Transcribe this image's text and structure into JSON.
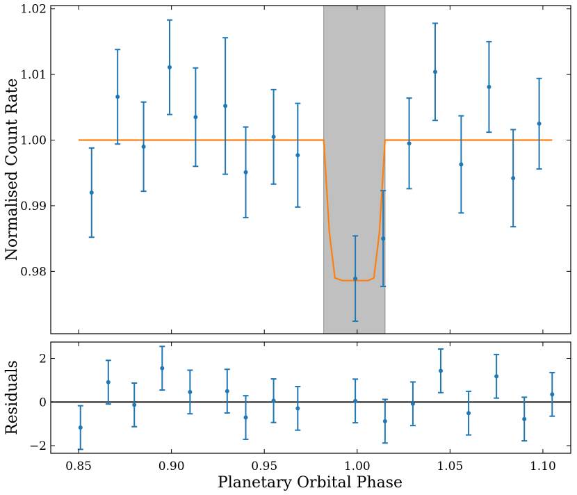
{
  "chart_data": [
    {
      "type": "scatter",
      "panel": "main",
      "xlabel": "",
      "ylabel": "Normalised Count Rate",
      "xlim": [
        0.835,
        1.115
      ],
      "ylim": [
        0.9705,
        1.0205
      ],
      "yticks": [
        "0.98",
        "0.99",
        "1.00",
        "1.01",
        "1.02"
      ],
      "ytick_values": [
        0.98,
        0.99,
        1.0,
        1.01,
        1.02
      ],
      "grid": false,
      "eclipse_band": {
        "x_start": 0.982,
        "x_end": 1.015,
        "color": "#c0c0c0"
      },
      "colors": {
        "data": "#1f77b4",
        "model": "#ff7f0e"
      },
      "series": [
        {
          "type": "errorbar",
          "points": [
            {
              "x": 0.857,
              "y": 0.992,
              "err": 0.0068
            },
            {
              "x": 0.871,
              "y": 1.0066,
              "err": 0.0072
            },
            {
              "x": 0.885,
              "y": 0.999,
              "err": 0.0068
            },
            {
              "x": 0.899,
              "y": 1.0111,
              "err": 0.0072
            },
            {
              "x": 0.913,
              "y": 1.0035,
              "err": 0.0075
            },
            {
              "x": 0.929,
              "y": 1.0052,
              "err": 0.0104
            },
            {
              "x": 0.94,
              "y": 0.9951,
              "err": 0.0069
            },
            {
              "x": 0.955,
              "y": 1.0005,
              "err": 0.0072
            },
            {
              "x": 0.968,
              "y": 0.9977,
              "err": 0.0079
            },
            {
              "x": 0.999,
              "y": 0.9789,
              "err": 0.0065
            },
            {
              "x": 1.014,
              "y": 0.985,
              "err": 0.0073
            },
            {
              "x": 1.028,
              "y": 0.9995,
              "err": 0.0069
            },
            {
              "x": 1.042,
              "y": 1.0104,
              "err": 0.0074
            },
            {
              "x": 1.056,
              "y": 0.9963,
              "err": 0.0074
            },
            {
              "x": 1.071,
              "y": 1.0081,
              "err": 0.0069
            },
            {
              "x": 1.084,
              "y": 0.9942,
              "err": 0.0074
            },
            {
              "x": 1.098,
              "y": 1.0025,
              "err": 0.0069
            }
          ]
        },
        {
          "type": "line",
          "x": [
            0.85,
            0.982,
            0.985,
            0.988,
            0.992,
            1.0,
            1.006,
            1.009,
            1.012,
            1.015,
            1.105
          ],
          "y": [
            1.0,
            1.0,
            0.986,
            0.979,
            0.9786,
            0.9786,
            0.9786,
            0.979,
            0.986,
            1.0,
            1.0
          ]
        }
      ]
    },
    {
      "type": "scatter",
      "panel": "residuals",
      "xlabel": "Planetary Orbital Phase",
      "ylabel": "Residuals",
      "xlim": [
        0.835,
        1.115
      ],
      "ylim": [
        -2.35,
        2.75
      ],
      "xticks": [
        "0.85",
        "0.90",
        "0.95",
        "1.00",
        "1.05",
        "1.10"
      ],
      "xtick_values": [
        0.85,
        0.9,
        0.95,
        1.0,
        1.05,
        1.1
      ],
      "yticks": [
        "−2",
        "0",
        "2"
      ],
      "ytick_values": [
        -2,
        0,
        2
      ],
      "zero_line": 0,
      "grid": false,
      "series": [
        {
          "type": "errorbar",
          "points": [
            {
              "x": 0.851,
              "y": -1.17,
              "err": 1.0
            },
            {
              "x": 0.866,
              "y": 0.91,
              "err": 1.0
            },
            {
              "x": 0.88,
              "y": -0.13,
              "err": 1.0
            },
            {
              "x": 0.895,
              "y": 1.55,
              "err": 1.0
            },
            {
              "x": 0.91,
              "y": 0.46,
              "err": 1.0
            },
            {
              "x": 0.93,
              "y": 0.5,
              "err": 1.0
            },
            {
              "x": 0.94,
              "y": -0.71,
              "err": 1.0
            },
            {
              "x": 0.955,
              "y": 0.06,
              "err": 1.0
            },
            {
              "x": 0.968,
              "y": -0.29,
              "err": 1.0
            },
            {
              "x": 0.999,
              "y": 0.05,
              "err": 1.0
            },
            {
              "x": 1.015,
              "y": -0.88,
              "err": 1.0
            },
            {
              "x": 1.03,
              "y": -0.08,
              "err": 1.0
            },
            {
              "x": 1.045,
              "y": 1.43,
              "err": 1.0
            },
            {
              "x": 1.06,
              "y": -0.51,
              "err": 1.0
            },
            {
              "x": 1.075,
              "y": 1.18,
              "err": 1.0
            },
            {
              "x": 1.09,
              "y": -0.78,
              "err": 1.0
            },
            {
              "x": 1.105,
              "y": 0.35,
              "err": 1.0
            }
          ]
        }
      ]
    }
  ]
}
